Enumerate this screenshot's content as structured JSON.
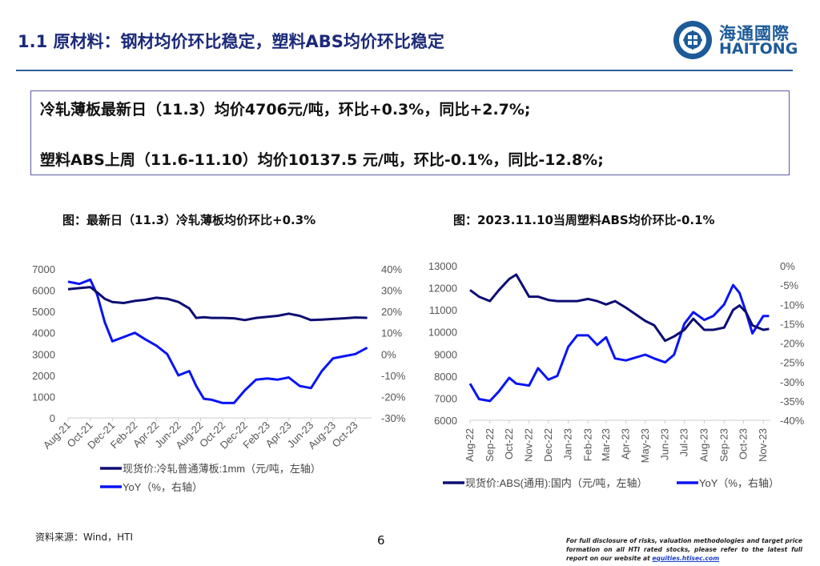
{
  "header": {
    "title": "1.1 原材料：钢材均价环比稳定，塑料ABS均价环比稳定",
    "logo_cn": "海通國際",
    "logo_en": "HAITONG"
  },
  "summary": {
    "line1": "冷轧薄板最新日（11.3）均价4706元/吨，环比+0.3%，同比+2.7%;",
    "line2": "塑料ABS上周（11.6-11.10）均价10137.5 元/吨，环比-0.1%，同比-12.8%;"
  },
  "colors": {
    "price": "#0d0d73",
    "yoy": "#0a14f5",
    "title": "#1b2a78"
  },
  "chart_data": [
    {
      "type": "line",
      "title": "图：最新日（11.3）冷轧薄板均价环比+0.3%",
      "ylim": [
        0,
        7000
      ],
      "y_ticks": [
        "0",
        "1000",
        "2000",
        "3000",
        "4000",
        "5000",
        "6000",
        "7000"
      ],
      "y2lim": [
        -30,
        40
      ],
      "y2_ticks": [
        "-30%",
        "-20%",
        "-10%",
        "0%",
        "10%",
        "20%",
        "30%",
        "40%"
      ],
      "x_ticks": [
        "Aug-21",
        "Oct-21",
        "Dec-21",
        "Feb-22",
        "Apr-22",
        "Jun-22",
        "Aug-22",
        "Oct-22",
        "Dec-22",
        "Feb-23",
        "Apr-23",
        "Jun-23",
        "Aug-23",
        "Oct-23"
      ],
      "x": [
        "2021-08-01",
        "2021-09-01",
        "2021-10-01",
        "2021-10-20",
        "2021-11-10",
        "2021-12-01",
        "2022-01-01",
        "2022-02-01",
        "2022-03-01",
        "2022-04-01",
        "2022-05-01",
        "2022-06-01",
        "2022-07-01",
        "2022-07-20",
        "2022-08-10",
        "2022-09-01",
        "2022-10-01",
        "2022-11-01",
        "2022-12-01",
        "2023-01-01",
        "2023-02-01",
        "2023-03-01",
        "2023-04-01",
        "2023-05-01",
        "2023-06-01",
        "2023-07-01",
        "2023-08-01",
        "2023-09-01",
        "2023-10-01",
        "2023-11-03"
      ],
      "series": [
        {
          "name": "现货价:冷轧普通薄板:1mm（元/吨，左轴）",
          "axis": "left",
          "values": [
            6050,
            6100,
            6150,
            5900,
            5600,
            5450,
            5400,
            5500,
            5550,
            5650,
            5600,
            5450,
            5150,
            4700,
            4730,
            4700,
            4700,
            4680,
            4600,
            4700,
            4750,
            4800,
            4900,
            4800,
            4600,
            4620,
            4650,
            4680,
            4720,
            4706
          ]
        },
        {
          "name": "YoY（%，右轴）",
          "axis": "right",
          "values": [
            34,
            33,
            35,
            28,
            15,
            6,
            8,
            10,
            7,
            4,
            0,
            -10,
            -8,
            -15,
            -21,
            -21.5,
            -23,
            -23,
            -17,
            -12,
            -11.5,
            -12,
            -11,
            -15,
            -16,
            -8,
            -2,
            -1,
            0,
            3
          ]
        }
      ]
    },
    {
      "type": "line",
      "title": "图：2023.11.10当周塑料ABS均价环比-0.1%",
      "ylim": [
        6000,
        13000
      ],
      "y_ticks": [
        "6000",
        "7000",
        "8000",
        "9000",
        "10000",
        "11000",
        "12000",
        "13000"
      ],
      "y2lim": [
        -40,
        0
      ],
      "y2_ticks": [
        "-40%",
        "-35%",
        "-30%",
        "-25%",
        "-20%",
        "-15%",
        "-10%",
        "-5%",
        "0%"
      ],
      "x_ticks": [
        "Aug-22",
        "Sep-22",
        "Oct-22",
        "Nov-22",
        "Dec-22",
        "Jan-23",
        "Feb-23",
        "Mar-23",
        "Apr-23",
        "May-23",
        "Jun-23",
        "Jul-23",
        "Aug-23",
        "Sep-23",
        "Oct-23",
        "Nov-23"
      ],
      "x": [
        "2022-08-01",
        "2022-08-15",
        "2022-09-01",
        "2022-09-15",
        "2022-10-01",
        "2022-10-12",
        "2022-11-01",
        "2022-11-15",
        "2022-12-01",
        "2022-12-15",
        "2023-01-01",
        "2023-01-15",
        "2023-02-01",
        "2023-02-15",
        "2023-03-01",
        "2023-03-15",
        "2023-04-01",
        "2023-05-01",
        "2023-05-15",
        "2023-06-01",
        "2023-06-15",
        "2023-07-01",
        "2023-07-15",
        "2023-08-01",
        "2023-08-15",
        "2023-09-01",
        "2023-09-15",
        "2023-09-25",
        "2023-10-05",
        "2023-10-15",
        "2023-11-01",
        "2023-11-10"
      ],
      "series": [
        {
          "name": "现货价:ABS(通用):国内（元/吨，左轴）",
          "axis": "left",
          "values": [
            11900,
            11600,
            11400,
            11900,
            12400,
            12600,
            11600,
            11600,
            11450,
            11400,
            11400,
            11400,
            11500,
            11400,
            11250,
            11400,
            11100,
            10500,
            10300,
            9600,
            9800,
            10100,
            10600,
            10100,
            10100,
            10200,
            11000,
            11200,
            10900,
            10300,
            10100,
            10137.5
          ]
        },
        {
          "name": "YoY（%，右轴）",
          "axis": "right",
          "values": [
            -30.5,
            -34.5,
            -35,
            -32.5,
            -29,
            -30.5,
            -31,
            -26.5,
            -29.5,
            -28.5,
            -21,
            -18,
            -18,
            -20.5,
            -18.5,
            -24,
            -24.5,
            -23,
            -24,
            -25,
            -23,
            -15,
            -12,
            -14,
            -13,
            -10,
            -5,
            -7,
            -12,
            -17.5,
            -13,
            -13
          ]
        }
      ]
    }
  ],
  "footer": {
    "source": "资料来源：Wind，HTI",
    "page": "6",
    "disclaimer": "For full disclosure of risks, valuation methodologies and target price formation on all HTI rated stocks, please refer to the latest full report on our website at ",
    "link": "equities.htisec.com"
  }
}
